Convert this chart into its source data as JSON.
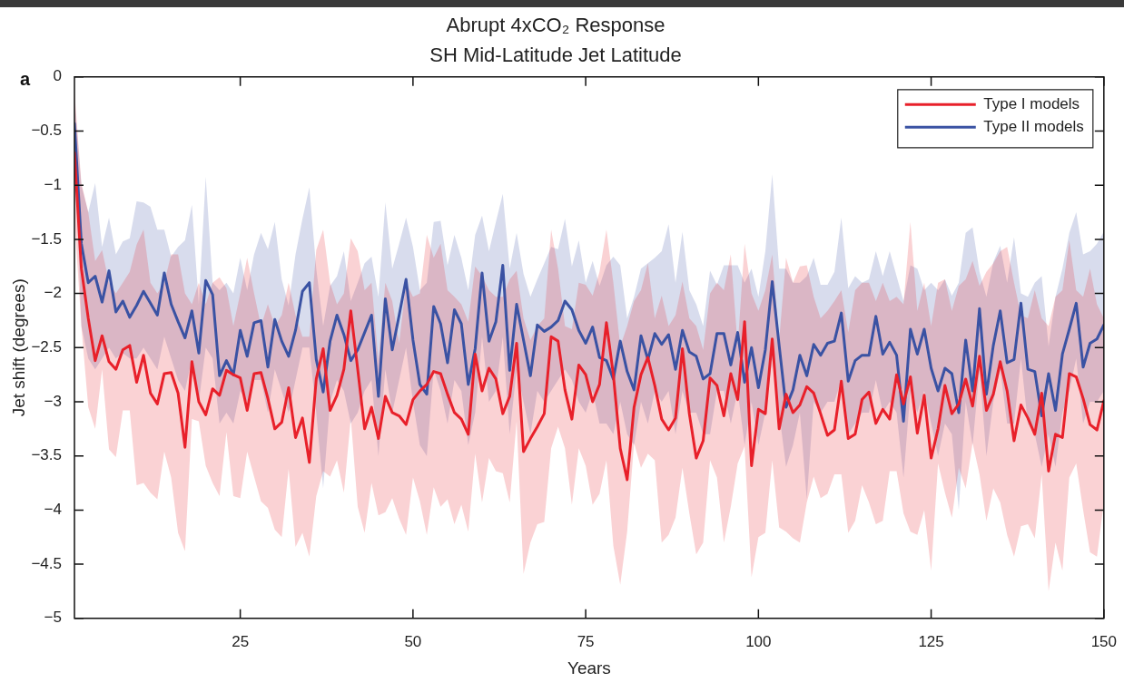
{
  "chart_data": {
    "type": "line",
    "title": "Abrupt 4xCO₂ Response",
    "subtitle": "SH Mid-Latitude Jet Latitude",
    "xlabel": "Years",
    "ylabel": "Jet shift (degrees)",
    "annotations": [
      "a"
    ],
    "x": [
      1,
      2,
      3,
      4,
      5,
      6,
      7,
      8,
      9,
      10,
      11,
      12,
      13,
      14,
      15,
      16,
      17,
      18,
      19,
      20,
      21,
      22,
      23,
      24,
      25,
      26,
      27,
      28,
      29,
      30,
      31,
      32,
      33,
      34,
      35,
      36,
      37,
      38,
      39,
      40,
      41,
      42,
      43,
      44,
      45,
      46,
      47,
      48,
      49,
      50,
      51,
      52,
      53,
      54,
      55,
      56,
      57,
      58,
      59,
      60,
      61,
      62,
      63,
      64,
      65,
      66,
      67,
      68,
      69,
      70,
      71,
      72,
      73,
      74,
      75,
      76,
      77,
      78,
      79,
      80,
      81,
      82,
      83,
      84,
      85,
      86,
      87,
      88,
      89,
      90,
      91,
      92,
      93,
      94,
      95,
      96,
      97,
      98,
      99,
      100,
      101,
      102,
      103,
      104,
      105,
      106,
      107,
      108,
      109,
      110,
      111,
      112,
      113,
      114,
      115,
      116,
      117,
      118,
      119,
      120,
      121,
      122,
      123,
      124,
      125,
      126,
      127,
      128,
      129,
      130,
      131,
      132,
      133,
      134,
      135,
      136,
      137,
      138,
      139,
      140,
      141,
      142,
      143,
      144,
      145,
      146,
      147,
      148,
      149,
      150
    ],
    "xlim": [
      1,
      150
    ],
    "xticks": [
      25,
      50,
      75,
      100,
      125,
      150
    ],
    "ylim": [
      -5,
      0
    ],
    "yticks": [
      {
        "value": -5,
        "label": "−5"
      },
      {
        "value": -4.5,
        "label": "−4.5"
      },
      {
        "value": -4,
        "label": "−4"
      },
      {
        "value": -3.5,
        "label": "−3.5"
      },
      {
        "value": -3,
        "label": "−3"
      },
      {
        "value": -2.5,
        "label": "−2.5"
      },
      {
        "value": -2,
        "label": "−2"
      },
      {
        "value": -1.5,
        "label": "−1.5"
      },
      {
        "value": -1,
        "label": "−1"
      },
      {
        "value": -0.5,
        "label": "−0.5"
      },
      0
    ],
    "grid": false,
    "legend": "top right",
    "marker": "none",
    "line_style": "solid",
    "series": [
      {
        "name": "Type I models",
        "color": "#e8202a",
        "values": [
          -0.7,
          -1.77,
          -2.23,
          -2.62,
          -2.39,
          -2.63,
          -2.7,
          -2.52,
          -2.48,
          -2.82,
          -2.57,
          -2.92,
          -3.02,
          -2.74,
          -2.73,
          -2.92,
          -3.42,
          -2.63,
          -3.0,
          -3.12,
          -2.88,
          -2.94,
          -2.71,
          -2.75,
          -2.78,
          -3.08,
          -2.74,
          -2.73,
          -2.97,
          -3.25,
          -3.19,
          -2.87,
          -3.33,
          -3.15,
          -3.56,
          -2.79,
          -2.51,
          -3.08,
          -2.94,
          -2.7,
          -2.16,
          -2.7,
          -3.25,
          -3.05,
          -3.34,
          -2.95,
          -3.1,
          -3.13,
          -3.21,
          -2.98,
          -2.9,
          -2.84,
          -2.72,
          -2.74,
          -2.93,
          -3.1,
          -3.16,
          -3.3,
          -2.56,
          -2.9,
          -2.69,
          -2.79,
          -3.11,
          -2.95,
          -2.46,
          -3.46,
          -3.34,
          -3.23,
          -3.11,
          -2.4,
          -2.44,
          -2.89,
          -3.16,
          -2.66,
          -2.75,
          -3.0,
          -2.84,
          -2.27,
          -2.75,
          -3.43,
          -3.72,
          -3.05,
          -2.75,
          -2.59,
          -2.85,
          -3.16,
          -3.26,
          -3.15,
          -2.51,
          -3.11,
          -3.52,
          -3.36,
          -2.78,
          -2.85,
          -3.13,
          -2.74,
          -2.98,
          -2.26,
          -3.59,
          -3.07,
          -3.11,
          -2.42,
          -3.25,
          -2.93,
          -3.1,
          -3.03,
          -2.86,
          -2.92,
          -3.11,
          -3.31,
          -3.26,
          -2.81,
          -3.34,
          -3.3,
          -2.98,
          -2.91,
          -3.2,
          -3.07,
          -3.16,
          -2.75,
          -3.02,
          -2.77,
          -3.29,
          -2.94,
          -3.52,
          -3.25,
          -2.85,
          -3.11,
          -3.02,
          -2.79,
          -3.04,
          -2.58,
          -3.08,
          -2.93,
          -2.63,
          -2.9,
          -3.36,
          -3.03,
          -3.15,
          -3.3,
          -2.92,
          -3.64,
          -3.3,
          -3.33,
          -2.74,
          -2.77,
          -2.97,
          -3.21,
          -3.26,
          -2.99
        ],
        "upper": [
          -0.13,
          -0.98,
          -1.25,
          -1.7,
          -1.6,
          -1.9,
          -2.0,
          -1.9,
          -1.8,
          -1.55,
          -1.41,
          -1.9,
          -2.0,
          -1.9,
          -1.64,
          -1.64,
          -2.0,
          -2.1,
          -1.9,
          -2.1,
          -1.9,
          -1.85,
          -1.95,
          -2.3,
          -2.0,
          -1.67,
          -2.0,
          -2.3,
          -2.1,
          -2.3,
          -2.2,
          -1.9,
          -2.2,
          -2.4,
          -2.4,
          -1.6,
          -1.41,
          -1.9,
          -2.1,
          -2.0,
          -1.49,
          -1.61,
          -1.97,
          -1.9,
          -2.62,
          -1.9,
          -2.07,
          -2.46,
          -1.9,
          -2.03,
          -2.0,
          -1.46,
          -1.67,
          -1.54,
          -1.97,
          -2.03,
          -2.1,
          -2.26,
          -1.75,
          -1.84,
          -1.97,
          -2.03,
          -2.03,
          -1.87,
          -1.79,
          -2.23,
          -2.43,
          -2.3,
          -2.23,
          -1.41,
          -1.77,
          -2.3,
          -2.33,
          -1.9,
          -1.92,
          -2.02,
          -1.8,
          -1.41,
          -1.9,
          -2.49,
          -2.3,
          -2.07,
          -1.97,
          -1.72,
          -2.23,
          -2.02,
          -2.3,
          -2.2,
          -1.89,
          -2.23,
          -2.3,
          -2.52,
          -2.0,
          -1.9,
          -1.97,
          -1.64,
          -2.49,
          -1.54,
          -2.0,
          -2.16,
          -1.97,
          -1.64,
          -2.43,
          -1.67,
          -1.9,
          -1.75,
          -1.74,
          -2.03,
          -2.23,
          -2.16,
          -2.07,
          -1.97,
          -2.36,
          -1.97,
          -1.9,
          -1.9,
          -2.07,
          -1.9,
          -2.07,
          -2.03,
          -2.1,
          -1.34,
          -2.16,
          -1.9,
          -2.3,
          -1.9,
          -1.87,
          -2.16,
          -1.93,
          -1.87,
          -1.7,
          -1.93,
          -1.8,
          -1.72,
          -1.61,
          -1.57,
          -1.9,
          -2.2,
          -2.23,
          -1.97,
          -2.23,
          -2.3,
          -2.03,
          -1.97,
          -1.51,
          -1.97,
          -2.03,
          -1.77,
          -2.1,
          -2.23
        ],
        "lower": [
          -1.3,
          -2.3,
          -3.05,
          -3.25,
          -2.7,
          -3.44,
          -3.51,
          -3.08,
          -3.08,
          -3.77,
          -3.75,
          -3.84,
          -3.9,
          -3.46,
          -3.7,
          -4.21,
          -4.38,
          -3.16,
          -3.18,
          -3.59,
          -3.75,
          -3.87,
          -3.28,
          -3.87,
          -3.89,
          -3.46,
          -3.69,
          -3.92,
          -3.98,
          -4.18,
          -4.25,
          -3.62,
          -4.34,
          -4.21,
          -4.43,
          -3.87,
          -3.64,
          -3.69,
          -3.54,
          -3.84,
          -3.15,
          -3.97,
          -4.21,
          -3.75,
          -4.05,
          -4.02,
          -3.89,
          -4.08,
          -4.23,
          -3.7,
          -3.92,
          -4.23,
          -3.79,
          -3.97,
          -3.9,
          -4.13,
          -3.95,
          -4.2,
          -3.48,
          -3.93,
          -3.52,
          -3.64,
          -3.66,
          -3.93,
          -3.18,
          -4.59,
          -4.3,
          -4.13,
          -4.11,
          -3.43,
          -3.23,
          -3.43,
          -3.95,
          -3.43,
          -3.59,
          -3.95,
          -3.85,
          -3.54,
          -4.33,
          -4.69,
          -4.2,
          -3.38,
          -3.61,
          -3.48,
          -3.54,
          -4.3,
          -4.23,
          -4.07,
          -3.61,
          -4.03,
          -4.41,
          -4.3,
          -3.54,
          -3.7,
          -4.3,
          -3.97,
          -3.57,
          -3.41,
          -4.62,
          -4.25,
          -4.21,
          -3.54,
          -4.16,
          -4.2,
          -4.26,
          -4.3,
          -3.93,
          -3.69,
          -3.89,
          -3.85,
          -3.67,
          -3.67,
          -4.21,
          -4.1,
          -3.77,
          -3.93,
          -4.13,
          -4.1,
          -3.64,
          -3.64,
          -4.03,
          -4.2,
          -4.23,
          -4.0,
          -4.56,
          -3.57,
          -3.84,
          -4.07,
          -3.61,
          -3.8,
          -3.38,
          -3.67,
          -4.1,
          -3.8,
          -3.93,
          -4.23,
          -4.43,
          -4.15,
          -4.13,
          -4.26,
          -3.67,
          -4.75,
          -4.3,
          -4.56,
          -3.7,
          -3.57,
          -4.0,
          -4.39,
          -4.43,
          -3.93
        ]
      },
      {
        "name": "Type II models",
        "color": "#3a52a3",
        "values": [
          -0.43,
          -1.54,
          -1.9,
          -1.84,
          -2.08,
          -1.79,
          -2.17,
          -2.07,
          -2.22,
          -2.11,
          -1.98,
          -2.09,
          -2.2,
          -1.81,
          -2.1,
          -2.26,
          -2.41,
          -2.16,
          -2.55,
          -1.88,
          -2.01,
          -2.76,
          -2.62,
          -2.75,
          -2.34,
          -2.58,
          -2.27,
          -2.25,
          -2.68,
          -2.24,
          -2.44,
          -2.58,
          -2.34,
          -1.98,
          -1.9,
          -2.61,
          -2.91,
          -2.44,
          -2.2,
          -2.38,
          -2.62,
          -2.52,
          -2.36,
          -2.2,
          -2.95,
          -2.05,
          -2.52,
          -2.2,
          -1.87,
          -2.43,
          -2.84,
          -2.93,
          -2.12,
          -2.28,
          -2.64,
          -2.15,
          -2.28,
          -2.84,
          -2.51,
          -1.81,
          -2.44,
          -2.26,
          -1.74,
          -2.71,
          -2.1,
          -2.43,
          -2.76,
          -2.29,
          -2.35,
          -2.31,
          -2.25,
          -2.07,
          -2.15,
          -2.34,
          -2.46,
          -2.31,
          -2.59,
          -2.62,
          -2.79,
          -2.44,
          -2.72,
          -2.89,
          -2.39,
          -2.61,
          -2.37,
          -2.47,
          -2.38,
          -2.7,
          -2.34,
          -2.54,
          -2.58,
          -2.79,
          -2.74,
          -2.37,
          -2.37,
          -2.66,
          -2.36,
          -2.82,
          -2.5,
          -2.87,
          -2.52,
          -1.89,
          -2.48,
          -3.05,
          -2.89,
          -2.57,
          -2.76,
          -2.47,
          -2.57,
          -2.46,
          -2.44,
          -2.18,
          -2.81,
          -2.62,
          -2.57,
          -2.57,
          -2.21,
          -2.56,
          -2.45,
          -2.57,
          -3.18,
          -2.33,
          -2.56,
          -2.33,
          -2.69,
          -2.9,
          -2.69,
          -2.74,
          -3.1,
          -2.43,
          -2.9,
          -2.14,
          -2.93,
          -2.48,
          -2.16,
          -2.64,
          -2.61,
          -2.09,
          -2.7,
          -2.72,
          -3.13,
          -2.74,
          -3.08,
          -2.56,
          -2.33,
          -2.09,
          -2.68,
          -2.46,
          -2.42,
          -2.29
        ],
        "upper": [
          -0.2,
          -1.0,
          -1.25,
          -0.98,
          -1.57,
          -1.3,
          -1.64,
          -1.52,
          -1.49,
          -1.15,
          -1.16,
          -1.2,
          -1.41,
          -1.41,
          -1.66,
          -1.57,
          -1.51,
          -1.18,
          -2.1,
          -0.92,
          -1.9,
          -1.97,
          -1.9,
          -2.0,
          -1.67,
          -1.97,
          -1.64,
          -1.44,
          -1.59,
          -1.34,
          -1.87,
          -2.11,
          -1.64,
          -1.31,
          -1.02,
          -1.77,
          -2.3,
          -1.93,
          -1.84,
          -1.61,
          -2.07,
          -1.9,
          -1.72,
          -1.66,
          -2.03,
          -1.16,
          -1.77,
          -1.54,
          -1.3,
          -1.57,
          -1.97,
          -1.9,
          -1.34,
          -1.33,
          -1.74,
          -1.46,
          -1.67,
          -1.97,
          -1.46,
          -1.28,
          -1.61,
          -1.34,
          -1.08,
          -1.77,
          -1.44,
          -1.82,
          -2.03,
          -1.87,
          -1.72,
          -1.57,
          -1.59,
          -1.31,
          -1.75,
          -1.51,
          -1.9,
          -1.7,
          -1.93,
          -1.74,
          -1.66,
          -1.74,
          -2.23,
          -2.03,
          -1.77,
          -1.72,
          -1.67,
          -1.61,
          -1.36,
          -1.9,
          -1.43,
          -1.97,
          -2.1,
          -2.3,
          -1.79,
          -1.92,
          -1.74,
          -1.74,
          -1.74,
          -1.9,
          -1.77,
          -2.03,
          -1.61,
          -0.9,
          -1.77,
          -1.77,
          -1.9,
          -1.9,
          -1.84,
          -1.67,
          -1.92,
          -1.92,
          -1.8,
          -1.3,
          -1.95,
          -1.84,
          -1.9,
          -1.87,
          -1.61,
          -1.84,
          -1.61,
          -1.84,
          -2.07,
          -1.74,
          -1.77,
          -1.97,
          -1.9,
          -1.97,
          -1.87,
          -2.02,
          -1.9,
          -1.44,
          -1.39,
          -1.8,
          -2.03,
          -1.71,
          -1.56,
          -1.9,
          -1.48,
          -2.0,
          -2.03,
          -1.9,
          -1.84,
          -2.49,
          -2.03,
          -1.77,
          -1.44,
          -1.25,
          -1.64,
          -1.61,
          -1.54,
          -1.43
        ],
        "lower": [
          -0.6,
          -2.3,
          -2.6,
          -2.7,
          -2.6,
          -2.5,
          -2.6,
          -2.55,
          -2.6,
          -2.6,
          -2.5,
          -2.6,
          -2.7,
          -2.4,
          -2.6,
          -2.8,
          -2.9,
          -2.6,
          -3.0,
          -2.5,
          -2.6,
          -3.2,
          -3.1,
          -3.2,
          -2.9,
          -3.0,
          -2.8,
          -2.8,
          -3.1,
          -2.7,
          -2.9,
          -3.1,
          -2.8,
          -2.5,
          -2.5,
          -3.1,
          -3.8,
          -3.0,
          -2.8,
          -2.9,
          -3.2,
          -3.1,
          -2.9,
          -2.8,
          -3.5,
          -2.7,
          -3.1,
          -2.8,
          -2.5,
          -3.0,
          -3.4,
          -3.5,
          -2.7,
          -2.9,
          -3.2,
          -2.8,
          -2.9,
          -3.4,
          -3.1,
          -2.4,
          -3.0,
          -2.9,
          -2.4,
          -3.3,
          -2.7,
          -3.0,
          -3.3,
          -2.9,
          -3.0,
          -2.9,
          -2.8,
          -2.7,
          -2.8,
          -3.0,
          -3.1,
          -2.9,
          -3.2,
          -3.2,
          -3.3,
          -3.0,
          -3.3,
          -3.4,
          -3.0,
          -3.2,
          -2.9,
          -3.0,
          -2.9,
          -3.3,
          -2.9,
          -3.1,
          -3.1,
          -3.3,
          -3.3,
          -2.9,
          -2.9,
          -3.2,
          -2.9,
          -3.4,
          -3.0,
          -3.4,
          -3.1,
          -2.6,
          -3.1,
          -3.6,
          -3.4,
          -3.1,
          -3.9,
          -3.0,
          -3.1,
          -3.0,
          -3.0,
          -2.8,
          -3.3,
          -3.2,
          -3.1,
          -3.1,
          -2.8,
          -3.1,
          -3.0,
          -3.1,
          -3.7,
          -2.9,
          -3.1,
          -2.9,
          -3.2,
          -3.5,
          -3.2,
          -3.3,
          -4.0,
          -3.0,
          -3.4,
          -2.7,
          -3.5,
          -3.0,
          -2.7,
          -3.2,
          -3.2,
          -2.6,
          -3.2,
          -3.3,
          -3.6,
          -3.3,
          -3.6,
          -3.1,
          -2.9,
          -2.6,
          -3.2,
          -3.0,
          -3.0,
          -2.9
        ]
      }
    ]
  }
}
